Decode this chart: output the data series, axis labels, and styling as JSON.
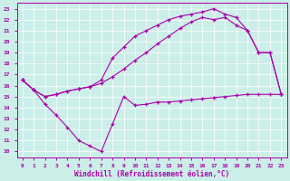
{
  "xlabel": "Windchill (Refroidissement éolien,°C)",
  "bg_color": "#cceee8",
  "line_color": "#aa00aa",
  "xlim": [
    -0.5,
    23.5
  ],
  "ylim": [
    9.5,
    23.5
  ],
  "xticks": [
    0,
    1,
    2,
    3,
    4,
    5,
    6,
    7,
    8,
    9,
    10,
    11,
    12,
    13,
    14,
    15,
    16,
    17,
    18,
    19,
    20,
    21,
    22,
    23
  ],
  "yticks": [
    10,
    11,
    12,
    13,
    14,
    15,
    16,
    17,
    18,
    19,
    20,
    21,
    22,
    23
  ],
  "line1_x": [
    0,
    1,
    2,
    3,
    4,
    5,
    6,
    7,
    8,
    9,
    10,
    11,
    12,
    13,
    14,
    15,
    16,
    17,
    18,
    19,
    20,
    21,
    22,
    23
  ],
  "line1_y": [
    16.5,
    15.6,
    14.3,
    13.3,
    12.2,
    11.0,
    10.5,
    10.0,
    12.5,
    15.0,
    14.2,
    14.3,
    14.5,
    14.5,
    14.6,
    14.7,
    14.8,
    14.9,
    15.0,
    15.1,
    15.2,
    15.2,
    15.2,
    15.2
  ],
  "line2_x": [
    0,
    1,
    2,
    3,
    4,
    5,
    6,
    7,
    8,
    9,
    10,
    11,
    12,
    13,
    14,
    15,
    16,
    17,
    18,
    19,
    20,
    21,
    22,
    23
  ],
  "line2_y": [
    16.5,
    15.6,
    15.0,
    15.2,
    15.5,
    15.7,
    15.9,
    16.2,
    16.8,
    17.5,
    18.3,
    19.0,
    19.8,
    20.5,
    21.2,
    21.8,
    22.2,
    22.0,
    22.2,
    21.5,
    21.0,
    19.0,
    19.0,
    15.2
  ],
  "line3_x": [
    0,
    1,
    2,
    3,
    4,
    5,
    6,
    7,
    8,
    9,
    10,
    11,
    12,
    13,
    14,
    15,
    16,
    17,
    18,
    19,
    20,
    21,
    22,
    23
  ],
  "line3_y": [
    16.5,
    15.6,
    15.0,
    15.2,
    15.5,
    15.7,
    15.9,
    16.5,
    18.5,
    19.5,
    20.5,
    21.0,
    21.5,
    22.0,
    22.3,
    22.5,
    22.7,
    23.0,
    22.5,
    22.2,
    21.0,
    19.0,
    19.0,
    15.2
  ]
}
